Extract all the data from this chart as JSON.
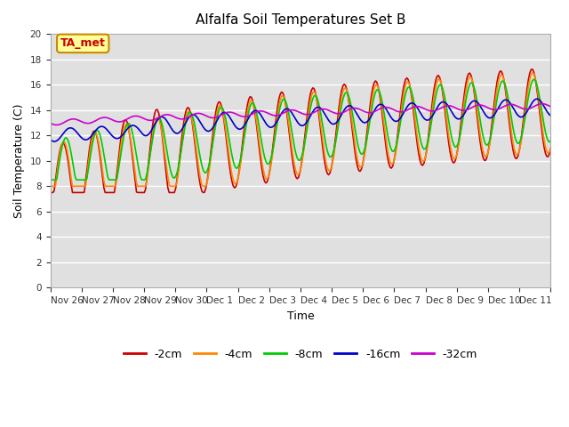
{
  "title": "Alfalfa Soil Temperatures Set B",
  "xlabel": "Time",
  "ylabel": "Soil Temperature (C)",
  "ylim": [
    0,
    20
  ],
  "yticks": [
    0,
    2,
    4,
    6,
    8,
    10,
    12,
    14,
    16,
    18,
    20
  ],
  "xlim": [
    0,
    16
  ],
  "xtick_positions": [
    0,
    1,
    2,
    3,
    4,
    5,
    6,
    7,
    8,
    9,
    10,
    11,
    12,
    13,
    14,
    15,
    16
  ],
  "xtick_labels": [
    "Nov 26",
    "Nov 27",
    "Nov 28",
    "Nov 29",
    "Nov 30",
    "Dec 1",
    "Dec 2",
    "Dec 3",
    "Dec 4",
    "Dec 5",
    "Dec 6",
    "Dec 7",
    "Dec 8",
    "Dec 9",
    "Dec 10",
    "Dec 11",
    ""
  ],
  "bg_color": "#e0e0e0",
  "fig_color": "#ffffff",
  "grid_color": "#ffffff",
  "series_colors": {
    "-2cm": "#cc0000",
    "-4cm": "#ff8800",
    "-8cm": "#00cc00",
    "-16cm": "#0000cc",
    "-32cm": "#cc00cc"
  },
  "annotation_text": "TA_met",
  "annotation_color": "#cc0000",
  "annotation_bg": "#ffff99",
  "annotation_border": "#cc8800",
  "n_points": 384,
  "n_days": 16
}
